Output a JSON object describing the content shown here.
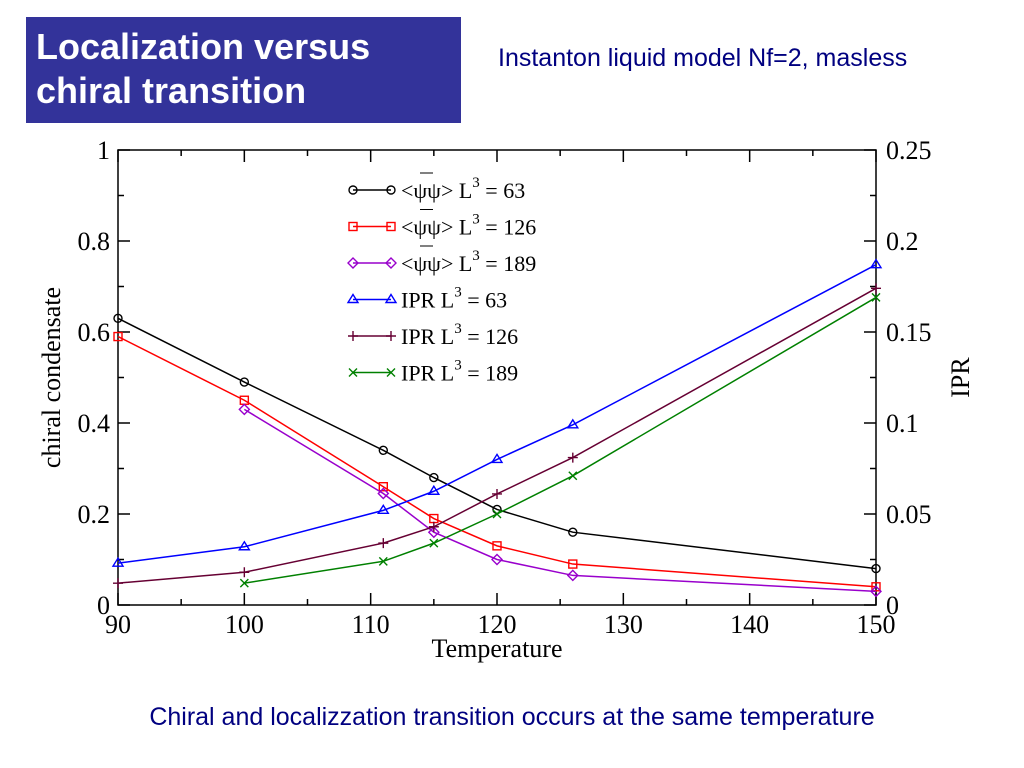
{
  "slide": {
    "title_line1": "Localization versus",
    "title_line2": "chiral transition",
    "subtitle": "Instanton liquid model Nf=2, masless",
    "caption": "Chiral and localizzation transition occurs at the same temperature"
  },
  "chart_data": {
    "type": "line",
    "xlabel": "Temperature",
    "ylabel_left": "chiral condensate",
    "ylabel_right": "IPR",
    "xlim": [
      90,
      150
    ],
    "ylim_left": [
      0,
      1
    ],
    "ylim_right": [
      0,
      0.25
    ],
    "x_ticks": [
      "90",
      "100",
      "110",
      "120",
      "130",
      "140",
      "150"
    ],
    "y_left_ticks": [
      "0",
      "0.2",
      "0.4",
      "0.6",
      "0.8",
      "1"
    ],
    "y_right_ticks": [
      "0",
      "0.05",
      "0.1",
      "0.15",
      "0.2",
      "0.25"
    ],
    "legend_placement": "top-center",
    "grid": false,
    "series": [
      {
        "legend_prefix": "<ψψ>",
        "L3": "63",
        "axis": "left",
        "color": "#000000",
        "marker": "circle",
        "x": [
          90,
          100,
          111,
          115,
          120,
          126,
          150
        ],
        "y": [
          0.63,
          0.49,
          0.34,
          0.28,
          0.21,
          0.16,
          0.08
        ]
      },
      {
        "legend_prefix": "<ψψ>",
        "L3": "126",
        "axis": "left",
        "color": "#ff0000",
        "marker": "square",
        "x": [
          90,
          100,
          111,
          115,
          120,
          126,
          150
        ],
        "y": [
          0.59,
          0.45,
          0.26,
          0.19,
          0.13,
          0.09,
          0.04
        ]
      },
      {
        "legend_prefix": "<ψψ>",
        "L3": "189",
        "axis": "left",
        "color": "#9900cc",
        "marker": "diamond",
        "x": [
          100,
          111,
          115,
          120,
          126,
          150
        ],
        "y": [
          0.43,
          0.245,
          0.16,
          0.1,
          0.065,
          0.03
        ]
      },
      {
        "legend_prefix": "IPR",
        "L3": "63",
        "axis": "right",
        "color": "#0000ff",
        "marker": "triangle",
        "x": [
          90,
          100,
          111,
          115,
          120,
          126,
          150
        ],
        "y": [
          0.023,
          0.032,
          0.052,
          0.0625,
          0.08,
          0.099,
          0.187
        ]
      },
      {
        "legend_prefix": "IPR",
        "L3": "126",
        "axis": "right",
        "color": "#660033",
        "marker": "plus",
        "x": [
          90,
          100,
          111,
          115,
          120,
          126,
          150
        ],
        "y": [
          0.012,
          0.018,
          0.034,
          0.043,
          0.061,
          0.081,
          0.174
        ]
      },
      {
        "legend_prefix": "IPR",
        "L3": "189",
        "axis": "right",
        "color": "#008000",
        "marker": "x",
        "x": [
          100,
          111,
          115,
          120,
          126,
          150
        ],
        "y": [
          0.012,
          0.024,
          0.034,
          0.05,
          0.071,
          0.169
        ]
      }
    ]
  }
}
